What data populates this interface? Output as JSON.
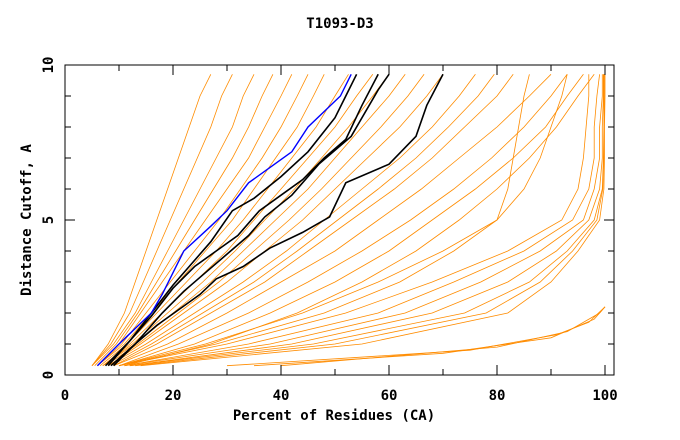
{
  "chart_data": {
    "type": "line",
    "title": "T1093-D3",
    "xlabel": "Percent of Residues (CA)",
    "ylabel": "Distance Cutoff, A",
    "xlim": [
      0,
      100
    ],
    "ylim": [
      0,
      10
    ],
    "xticks": [
      "0",
      "20",
      "40",
      "60",
      "80",
      "100"
    ],
    "yticks": [
      "0",
      "5",
      "10"
    ],
    "grid": false,
    "colors": {
      "other": "#ff8c00",
      "highlight": "#000000",
      "best": "#0000ff"
    },
    "orange_y_levels": [
      0.3,
      1,
      2,
      3,
      4,
      5,
      6,
      7,
      8,
      9,
      9.7
    ],
    "orange_series_x": [
      [
        5,
        8,
        11,
        13,
        15,
        17,
        19,
        21,
        23,
        25,
        27
      ],
      [
        5,
        8.5,
        12,
        14.5,
        17,
        19.5,
        22,
        24.5,
        27,
        29,
        31
      ],
      [
        5,
        9,
        13,
        16,
        19,
        22,
        25,
        28,
        31,
        33,
        35
      ],
      [
        5.5,
        9.5,
        13.5,
        17,
        20.5,
        24,
        27.5,
        31,
        34,
        36.5,
        38.5
      ],
      [
        6,
        10,
        14,
        18,
        22,
        26,
        30,
        34,
        37,
        40,
        42
      ],
      [
        6,
        10.5,
        15,
        19.5,
        24,
        28.5,
        32.5,
        36.5,
        40,
        43,
        45
      ],
      [
        6,
        11,
        16,
        21,
        26,
        31,
        35,
        39,
        43,
        46,
        48
      ],
      [
        6.5,
        11.5,
        17,
        22.5,
        28,
        33,
        37.5,
        42,
        46.5,
        50,
        52.5
      ],
      [
        7,
        12,
        18,
        24,
        30,
        35,
        40,
        45,
        50,
        54,
        57
      ],
      [
        7,
        12.5,
        19,
        25.5,
        31.5,
        37,
        42.5,
        47.5,
        52.5,
        57,
        60
      ],
      [
        7,
        13,
        20,
        27,
        33,
        39,
        45,
        50,
        55,
        60,
        63
      ],
      [
        7.5,
        13.5,
        21,
        28.5,
        35,
        41.5,
        47.5,
        53,
        58.5,
        63.5,
        66.5
      ],
      [
        8,
        14,
        22,
        30,
        37,
        44,
        50,
        56,
        62,
        67,
        70
      ],
      [
        8,
        15,
        24,
        33,
        41,
        48,
        55,
        62,
        68,
        73,
        76
      ],
      [
        8.5,
        16,
        25.5,
        35,
        43,
        50.5,
        58,
        65,
        71,
        76.5,
        79.5
      ],
      [
        9,
        17,
        27,
        37,
        45,
        53,
        61,
        68,
        74,
        80,
        83
      ],
      [
        9,
        19,
        30,
        40,
        50,
        58,
        66,
        73,
        80,
        86,
        90
      ],
      [
        10,
        21,
        34,
        45,
        55,
        64,
        72,
        79,
        85,
        90,
        93
      ],
      [
        10,
        24,
        38,
        50,
        60,
        68,
        76,
        83,
        89,
        93,
        96
      ],
      [
        11,
        27,
        43,
        55,
        65,
        73,
        80,
        86,
        91,
        95,
        98
      ],
      [
        10,
        26,
        44,
        58,
        70,
        80,
        85,
        88,
        90,
        92,
        93
      ],
      [
        10,
        28,
        48,
        62,
        72,
        80,
        82,
        83,
        84,
        85,
        86
      ],
      [
        10,
        30,
        52,
        68,
        82,
        92,
        95,
        96,
        96.5,
        97,
        97
      ],
      [
        11,
        34,
        58,
        72,
        85,
        94,
        97,
        98,
        98,
        98.5,
        99
      ],
      [
        11,
        38,
        63,
        77,
        88,
        96,
        98,
        99,
        99,
        99.5,
        99.5
      ],
      [
        12,
        42,
        68,
        82,
        91,
        97,
        99,
        99.5,
        99.5,
        99.7,
        99.7
      ],
      [
        12,
        46,
        74,
        86,
        93,
        98,
        99.5,
        99.7,
        99.8,
        99.8,
        99.8
      ],
      [
        13,
        50,
        78,
        88,
        94,
        98.5,
        99.6,
        99.8,
        99.8,
        99.9,
        99.9
      ],
      [
        14,
        55,
        82,
        90,
        95,
        99,
        99.8,
        99.9,
        99.9,
        100,
        100
      ]
    ],
    "orange_low_series": [
      [
        [
          30,
          0.3
        ],
        [
          75,
          0.8
        ],
        [
          91,
          1.3
        ],
        [
          97,
          1.7
        ],
        [
          100,
          2.2
        ]
      ],
      [
        [
          35,
          0.3
        ],
        [
          70,
          0.7
        ],
        [
          90,
          1.2
        ],
        [
          98,
          1.8
        ],
        [
          100,
          2.2
        ]
      ],
      [
        [
          40,
          0.3
        ],
        [
          80,
          0.9
        ],
        [
          93,
          1.4
        ],
        [
          99,
          2.0
        ],
        [
          100,
          2.2
        ]
      ]
    ],
    "highlight_series": [
      [
        [
          7.5,
          0.3
        ],
        [
          12,
          1.1
        ],
        [
          16,
          2
        ],
        [
          20,
          2.9
        ],
        [
          23,
          3.5
        ],
        [
          27,
          4.3
        ],
        [
          31,
          5.3
        ],
        [
          35,
          5.7
        ],
        [
          40,
          6.4
        ],
        [
          45,
          7.2
        ],
        [
          50,
          8.3
        ],
        [
          52,
          9
        ],
        [
          54,
          9.7
        ]
      ],
      [
        [
          8,
          0.3
        ],
        [
          12,
          1.1
        ],
        [
          16,
          1.9
        ],
        [
          20,
          2.8
        ],
        [
          24,
          3.5
        ],
        [
          28,
          4
        ],
        [
          32,
          4.5
        ],
        [
          36,
          5.3
        ],
        [
          40,
          5.8
        ],
        [
          44,
          6.3
        ],
        [
          48,
          7
        ],
        [
          52,
          7.6
        ],
        [
          55,
          8.7
        ],
        [
          58,
          9.7
        ]
      ],
      [
        [
          9,
          0.3
        ],
        [
          13,
          1
        ],
        [
          18,
          2
        ],
        [
          22,
          2.7
        ],
        [
          26,
          3.3
        ],
        [
          30,
          3.9
        ],
        [
          34,
          4.5
        ],
        [
          37,
          5.1
        ],
        [
          42,
          5.8
        ],
        [
          47,
          6.8
        ],
        [
          53,
          7.7
        ],
        [
          58,
          9.2
        ],
        [
          60,
          9.7
        ]
      ],
      [
        [
          8.5,
          0.3
        ],
        [
          13,
          1
        ],
        [
          17,
          1.6
        ],
        [
          21,
          2.1
        ],
        [
          25,
          2.6
        ],
        [
          28,
          3.1
        ],
        [
          33,
          3.5
        ],
        [
          38,
          4.1
        ],
        [
          44,
          4.6
        ],
        [
          49,
          5.1
        ],
        [
          52,
          6.2
        ],
        [
          60,
          6.8
        ],
        [
          65,
          7.7
        ],
        [
          67,
          8.7
        ],
        [
          70,
          9.7
        ]
      ]
    ],
    "best_series": [
      [
        6,
        0.3
      ],
      [
        10,
        1
      ],
      [
        13,
        1.5
      ],
      [
        16,
        2
      ],
      [
        18,
        2.6
      ],
      [
        20,
        3.3
      ],
      [
        22,
        4
      ],
      [
        27,
        4.8
      ],
      [
        30,
        5.3
      ],
      [
        34,
        6.2
      ],
      [
        38,
        6.7
      ],
      [
        42,
        7.2
      ],
      [
        45,
        8
      ],
      [
        48,
        8.5
      ],
      [
        51,
        9
      ],
      [
        53,
        9.7
      ]
    ]
  }
}
